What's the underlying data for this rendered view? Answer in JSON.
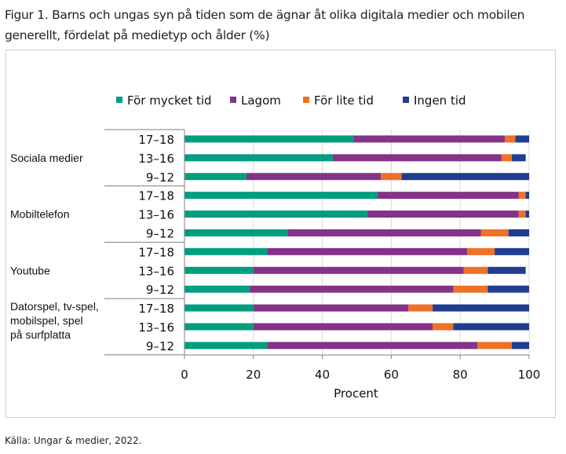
{
  "figure": {
    "title": "Figur 1. Barns och ungas syn på tiden som de ägnar åt olika digitala medier och mobilen generellt, fördelat på medietyp och ålder (%)",
    "source": "Källa: Ungar & medier, 2022."
  },
  "chart_data": {
    "type": "bar",
    "orientation": "horizontal",
    "stacked": true,
    "title": "Barns och ungas syn på tiden som de ägnar åt olika digitala medier och mobilen generellt, fördelat på medietyp och ålder (%)",
    "xlabel": "Procent",
    "ylabel": "",
    "xlim": [
      0,
      100
    ],
    "xticks": [
      0,
      20,
      40,
      60,
      80,
      100
    ],
    "grid": true,
    "legend_position": "top",
    "groups": [
      {
        "name": "Sociala medier",
        "lines": [
          "Sociala medier"
        ]
      },
      {
        "name": "Mobiltelefon",
        "lines": [
          "Mobiltelefon"
        ]
      },
      {
        "name": "Youtube",
        "lines": [
          "Youtube"
        ]
      },
      {
        "name": "Datorspel, tv-spel, mobilspel, spel på surfplatta",
        "lines": [
          "Datorspel, tv-spel,",
          "mobilspel, spel",
          "på surfplatta"
        ]
      }
    ],
    "categories": [
      {
        "group": 0,
        "age": "17–18"
      },
      {
        "group": 0,
        "age": "13–16"
      },
      {
        "group": 0,
        "age": "9–12"
      },
      {
        "group": 1,
        "age": "17–18"
      },
      {
        "group": 1,
        "age": "13–16"
      },
      {
        "group": 1,
        "age": "9–12"
      },
      {
        "group": 2,
        "age": "17–18"
      },
      {
        "group": 2,
        "age": "13–16"
      },
      {
        "group": 2,
        "age": "9–12"
      },
      {
        "group": 3,
        "age": "17–18"
      },
      {
        "group": 3,
        "age": "13–16"
      },
      {
        "group": 3,
        "age": "9–12"
      }
    ],
    "series": [
      {
        "name": "För mycket tid",
        "color": "#009e7e",
        "values": [
          49,
          43,
          18,
          56,
          53,
          30,
          24,
          20,
          19,
          20,
          20,
          24
        ]
      },
      {
        "name": "Lagom",
        "color": "#833388",
        "values": [
          44,
          49,
          39,
          41,
          44,
          56,
          58,
          61,
          59,
          45,
          52,
          61
        ]
      },
      {
        "name": "För lite tid",
        "color": "#ee7127",
        "values": [
          3,
          3,
          6,
          2,
          2,
          8,
          8,
          7,
          10,
          7,
          6,
          10
        ]
      },
      {
        "name": "Ingen tid",
        "color": "#203d8f",
        "values": [
          4,
          4,
          37,
          1,
          1,
          6,
          10,
          11,
          12,
          28,
          22,
          5
        ]
      }
    ]
  }
}
